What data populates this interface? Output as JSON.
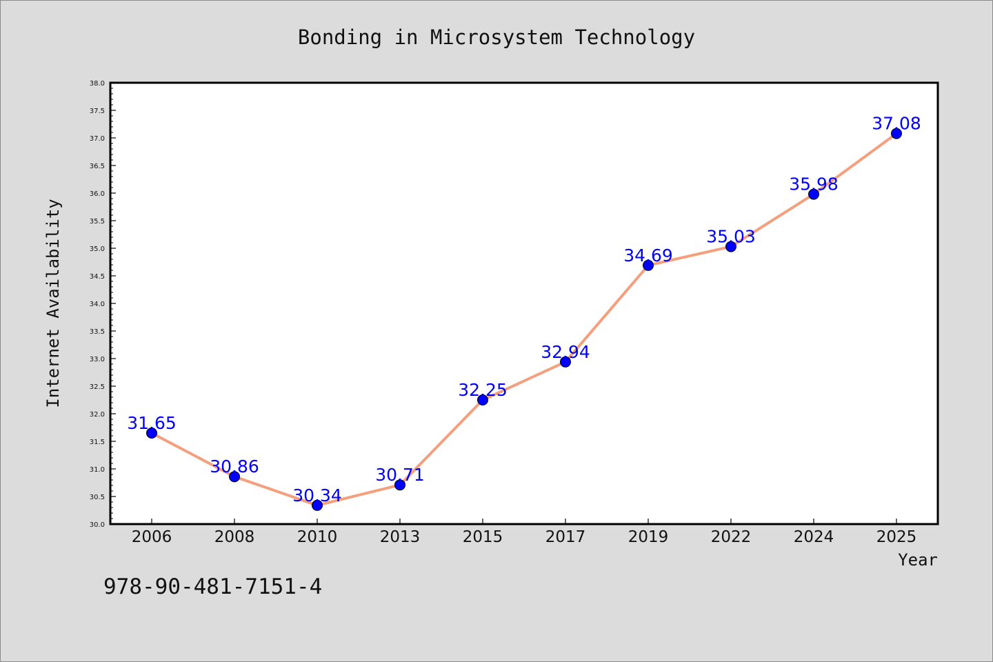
{
  "chart_data": {
    "type": "line",
    "title": "Bonding in Microsystem Technology",
    "xlabel": "Year",
    "ylabel": "Internet Availability",
    "categories": [
      "2006",
      "2008",
      "2010",
      "2013",
      "2015",
      "2017",
      "2019",
      "2022",
      "2024",
      "2025"
    ],
    "values": [
      31.65,
      30.86,
      30.34,
      30.71,
      32.25,
      32.94,
      34.69,
      35.03,
      35.98,
      37.08
    ],
    "data_labels": [
      "31.65",
      "30.86",
      "30.34",
      "30.71",
      "32.25",
      "32.94",
      "34.69",
      "35.03",
      "35.98",
      "37.08"
    ],
    "ylim": [
      30.0,
      38.0
    ],
    "yticks": [
      "30.0",
      "30.5",
      "31.0",
      "31.5",
      "32.0",
      "32.5",
      "33.0",
      "33.5",
      "34.0",
      "34.5",
      "35.0",
      "35.5",
      "36.0",
      "36.5",
      "37.0",
      "37.5",
      "38.0"
    ],
    "grid": false,
    "legend": "none",
    "colors": {
      "line": "#f4a07e",
      "marker": "#0000ff",
      "label": "#0000ff",
      "background": "#dcdcdc",
      "plot_background": "#ffffff"
    }
  },
  "footer": {
    "isbn": "978-90-481-7151-4"
  }
}
